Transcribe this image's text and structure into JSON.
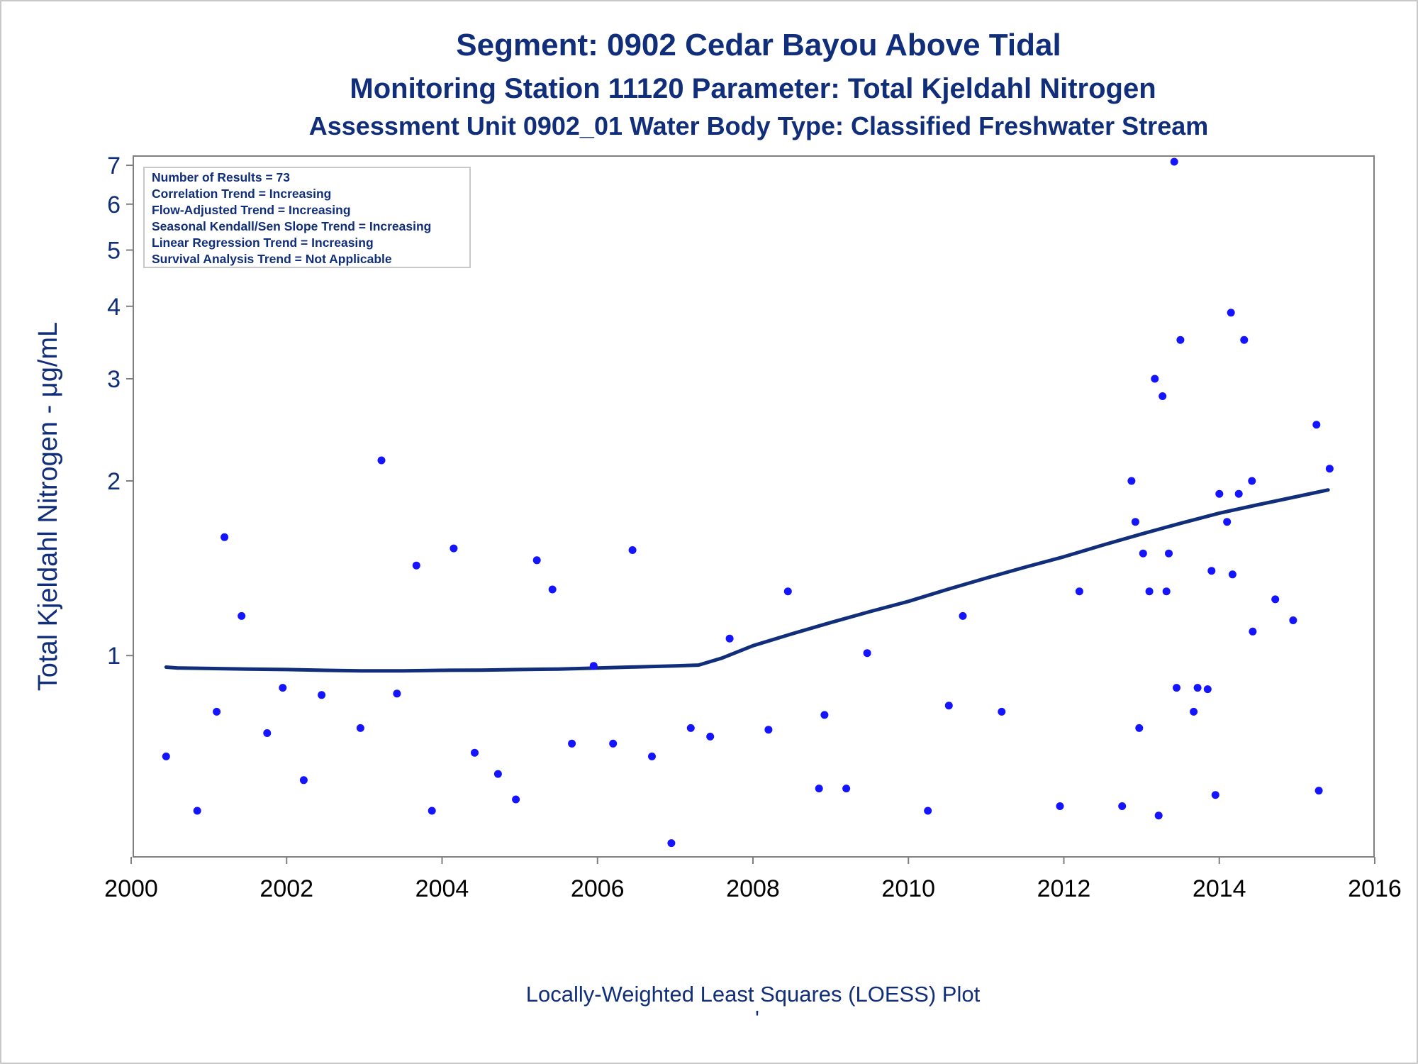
{
  "titles": {
    "line1": "Segment: 0902  Cedar Bayou Above Tidal",
    "line2": "Monitoring Station 11120 Parameter: Total Kjeldahl Nitrogen",
    "line3": "Assessment Unit 0902_01   Water Body Type: Classified Freshwater Stream"
  },
  "inset": {
    "lines": [
      "Number of Results = 73",
      "Correlation Trend = Increasing",
      "Flow-Adjusted Trend = Increasing",
      "Seasonal Kendall/Sen Slope Trend = Increasing",
      "Linear Regression Trend = Increasing",
      "Survival Analysis Trend = Not Applicable"
    ]
  },
  "footnote": "Locally-Weighted Least Squares (LOESS) Plot",
  "footnote_mark": "'",
  "colors": {
    "text": "#112e7a",
    "points": "#1414ff",
    "loess": "#112e7a",
    "axis": "#7f7f7f",
    "inset_border": "#c8c8c8"
  },
  "chart_data": {
    "type": "scatter",
    "xlabel": "",
    "ylabel": "Total Kjeldahl Nitrogen -  μg/mL",
    "xlim": [
      2000,
      2016
    ],
    "ylim": [
      0.46,
      7.1
    ],
    "yscale": "log",
    "xticks": [
      "2000",
      "2002",
      "2004",
      "2006",
      "2008",
      "2010",
      "2012",
      "2014",
      "2016"
    ],
    "yticks": [
      "1",
      "2",
      "3",
      "4",
      "5",
      "6",
      "7"
    ],
    "grid": false,
    "series": [
      {
        "kind": "points",
        "x": [
          2000.45,
          2000.85,
          2001.1,
          2001.2,
          2001.42,
          2001.75,
          2001.95,
          2002.22,
          2002.45,
          2002.95,
          2003.22,
          2003.42,
          2003.67,
          2003.87,
          2004.15,
          2004.42,
          2004.72,
          2004.95,
          2005.22,
          2005.42,
          2005.67,
          2005.95,
          2006.2,
          2006.45,
          2006.7,
          2006.95,
          2007.2,
          2007.45,
          2007.7,
          2008.2,
          2008.45,
          2008.85,
          2008.92,
          2009.2,
          2009.47,
          2010.25,
          2010.52,
          2010.7,
          2011.2,
          2011.95,
          2012.2,
          2012.75,
          2012.87,
          2012.92,
          2012.97,
          2013.02,
          2013.1,
          2013.17,
          2013.22,
          2013.27,
          2013.32,
          2013.35,
          2013.42,
          2013.45,
          2013.5,
          2013.67,
          2013.72,
          2013.85,
          2013.9,
          2013.95,
          2014.0,
          2014.1,
          2014.15,
          2014.17,
          2014.25,
          2014.32,
          2014.42,
          2014.43,
          2014.72,
          2014.95,
          2015.25,
          2015.28,
          2015.42
        ],
        "y": [
          0.67,
          0.54,
          0.8,
          1.6,
          1.17,
          0.735,
          0.88,
          0.61,
          0.855,
          0.75,
          2.17,
          0.86,
          1.43,
          0.54,
          1.53,
          0.68,
          0.625,
          0.565,
          1.46,
          1.3,
          0.705,
          0.96,
          0.705,
          1.52,
          0.67,
          0.475,
          0.75,
          0.725,
          1.07,
          0.745,
          1.29,
          0.59,
          0.79,
          0.59,
          1.01,
          0.54,
          0.82,
          1.17,
          0.8,
          0.55,
          1.29,
          0.55,
          2.0,
          1.7,
          0.75,
          1.5,
          1.29,
          3.0,
          0.53,
          2.8,
          1.29,
          1.5,
          7.1,
          0.88,
          3.5,
          0.8,
          0.88,
          0.875,
          1.4,
          0.575,
          1.9,
          1.7,
          3.9,
          1.38,
          1.9,
          3.5,
          2.0,
          1.1,
          1.25,
          1.15,
          2.5,
          0.585,
          2.1
        ]
      },
      {
        "kind": "loess",
        "x": [
          2000.45,
          2000.6,
          2001.0,
          2001.5,
          2002.0,
          2002.5,
          2003.0,
          2003.5,
          2004.0,
          2004.5,
          2005.0,
          2005.5,
          2006.0,
          2006.5,
          2007.0,
          2007.3,
          2007.6,
          2008.0,
          2008.5,
          2009.0,
          2009.5,
          2010.0,
          2010.5,
          2011.0,
          2011.5,
          2012.0,
          2012.5,
          2013.0,
          2013.5,
          2014.0,
          2014.5,
          2015.0,
          2015.4
        ],
        "y": [
          0.955,
          0.952,
          0.95,
          0.948,
          0.946,
          0.943,
          0.941,
          0.941,
          0.943,
          0.944,
          0.946,
          0.948,
          0.952,
          0.956,
          0.96,
          0.963,
          0.99,
          1.04,
          1.09,
          1.14,
          1.19,
          1.24,
          1.3,
          1.36,
          1.42,
          1.48,
          1.55,
          1.62,
          1.69,
          1.76,
          1.82,
          1.88,
          1.93
        ]
      }
    ]
  }
}
